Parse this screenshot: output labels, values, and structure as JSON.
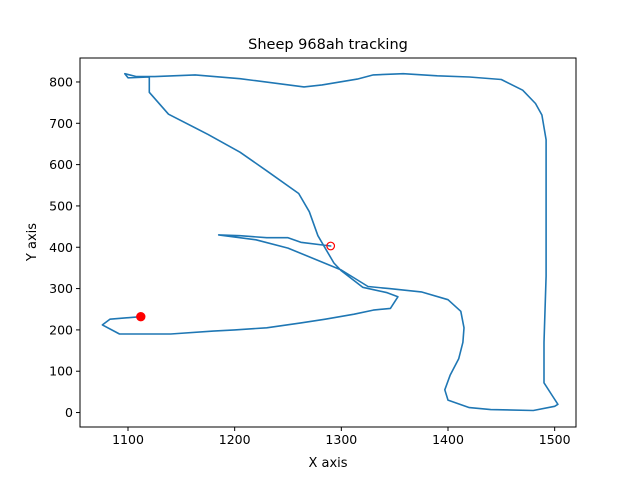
{
  "chart_data": {
    "type": "line",
    "title": "Sheep 968ah tracking",
    "xlabel": "X axis",
    "ylabel": "Y axis",
    "xlim": [
      1055,
      1520
    ],
    "ylim": [
      -35,
      858
    ],
    "xticks": [
      1100,
      1200,
      1300,
      1400,
      1500
    ],
    "yticks": [
      0,
      100,
      200,
      300,
      400,
      500,
      600,
      700,
      800
    ],
    "grid": false,
    "legend": "none",
    "colors": {
      "line": "#1f77b4",
      "start_marker": "#ff0000",
      "end_marker": "#ff0000"
    },
    "series": [
      {
        "points": [
          [
            1112,
            232
          ],
          [
            1083,
            226
          ],
          [
            1076,
            212
          ],
          [
            1092,
            190
          ],
          [
            1140,
            190
          ],
          [
            1180,
            197
          ],
          [
            1200,
            200
          ],
          [
            1230,
            205
          ],
          [
            1262,
            217
          ],
          [
            1285,
            226
          ],
          [
            1312,
            238
          ],
          [
            1330,
            248
          ],
          [
            1346,
            252
          ],
          [
            1353,
            280
          ],
          [
            1343,
            290
          ],
          [
            1320,
            303
          ],
          [
            1300,
            343
          ],
          [
            1293,
            362
          ],
          [
            1278,
            428
          ],
          [
            1270,
            486
          ],
          [
            1260,
            530
          ],
          [
            1230,
            585
          ],
          [
            1205,
            630
          ],
          [
            1175,
            673
          ],
          [
            1138,
            722
          ],
          [
            1120,
            775
          ],
          [
            1120,
            812
          ],
          [
            1100,
            810
          ],
          [
            1097,
            820
          ],
          [
            1108,
            813
          ],
          [
            1125,
            813
          ],
          [
            1163,
            817
          ],
          [
            1205,
            808
          ],
          [
            1265,
            788
          ],
          [
            1282,
            793
          ],
          [
            1315,
            807
          ],
          [
            1330,
            817
          ],
          [
            1358,
            820
          ],
          [
            1390,
            815
          ],
          [
            1420,
            812
          ],
          [
            1450,
            806
          ],
          [
            1470,
            780
          ],
          [
            1482,
            748
          ],
          [
            1488,
            720
          ],
          [
            1490,
            690
          ],
          [
            1492,
            660
          ],
          [
            1492,
            540
          ],
          [
            1492,
            330
          ],
          [
            1490,
            170
          ],
          [
            1490,
            72
          ],
          [
            1498,
            40
          ],
          [
            1503,
            20
          ],
          [
            1500,
            15
          ],
          [
            1480,
            5
          ],
          [
            1440,
            7
          ],
          [
            1420,
            12
          ],
          [
            1400,
            30
          ],
          [
            1397,
            55
          ],
          [
            1402,
            90
          ],
          [
            1410,
            130
          ],
          [
            1414,
            170
          ],
          [
            1415,
            205
          ],
          [
            1412,
            245
          ],
          [
            1400,
            273
          ],
          [
            1375,
            292
          ],
          [
            1345,
            300
          ],
          [
            1325,
            305
          ],
          [
            1300,
            345
          ],
          [
            1250,
            398
          ],
          [
            1220,
            418
          ],
          [
            1185,
            430
          ],
          [
            1205,
            428
          ],
          [
            1230,
            423
          ],
          [
            1250,
            423
          ],
          [
            1262,
            412
          ],
          [
            1290,
            403
          ]
        ]
      }
    ],
    "start_point": [
      1112,
      232
    ],
    "end_point": [
      1290,
      403
    ]
  }
}
